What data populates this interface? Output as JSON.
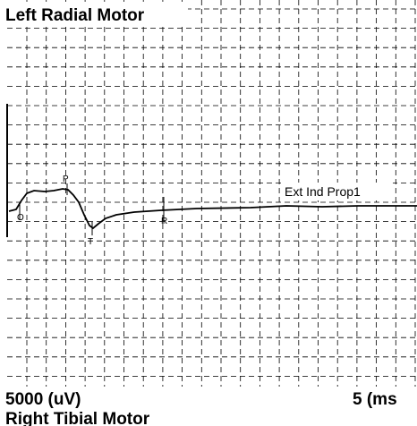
{
  "panel": {
    "title": "Left Radial Motor",
    "trace_label": "Ext Ind Prop1",
    "markers": [
      "O",
      "P",
      "T",
      "R"
    ],
    "amplitude_scale": "5000 (uV)",
    "time_scale": "5 (ms"
  },
  "next_panel": {
    "title": "Right Tibial Motor"
  }
}
